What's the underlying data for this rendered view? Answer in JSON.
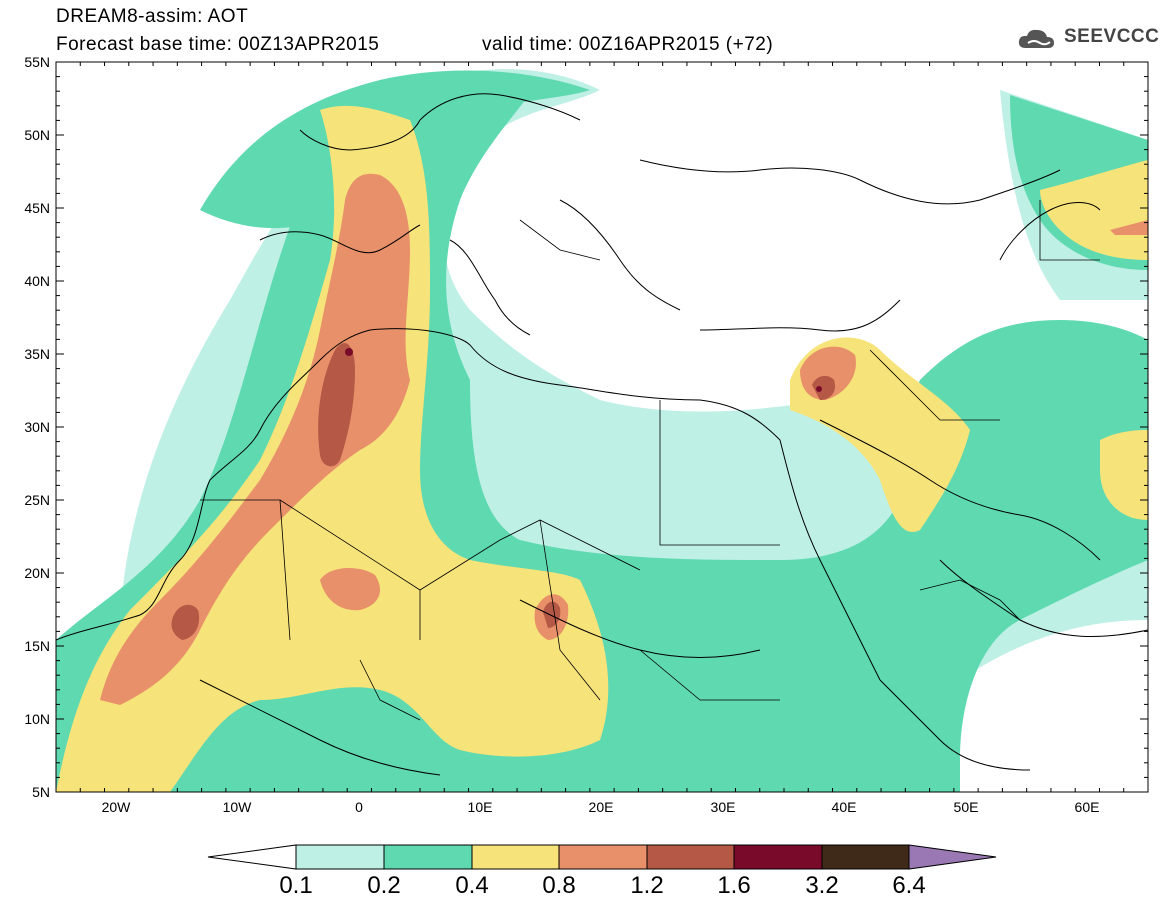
{
  "header": {
    "line1": "DREAM8-assim: AOT",
    "line2": "Forecast base time: 00Z13APR2015",
    "line3": "valid time: 00Z16APR2015 (+72)",
    "logo_text": "SEEVCCC"
  },
  "map": {
    "lon_range": [
      -25,
      65
    ],
    "lat_range": [
      5,
      55
    ],
    "lat_labels": [
      "55N",
      "50N",
      "45N",
      "40N",
      "35N",
      "30N",
      "25N",
      "20N",
      "15N",
      "10N",
      "5N"
    ],
    "lon_labels": [
      "20W",
      "10W",
      "0",
      "10E",
      "20E",
      "30E",
      "40E",
      "50E",
      "60E"
    ]
  },
  "colorbar": {
    "labels": [
      "0.1",
      "0.2",
      "0.4",
      "0.8",
      "1.2",
      "1.6",
      "3.2",
      "6.4"
    ],
    "colors": [
      "#ffffff",
      "#bff0e6",
      "#5fd9b0",
      "#f6e37a",
      "#e8906a",
      "#b55845",
      "#7a0a2a",
      "#3f2a1a",
      "#9a78b4"
    ]
  },
  "colors": {
    "c1": "#bff0e6",
    "c2": "#5fd9b0",
    "c3": "#f6e37a",
    "c4": "#e8906a",
    "c5": "#b55845",
    "c6": "#7a0a2a",
    "c7": "#3f2a1a",
    "c8": "#9a78b4"
  }
}
